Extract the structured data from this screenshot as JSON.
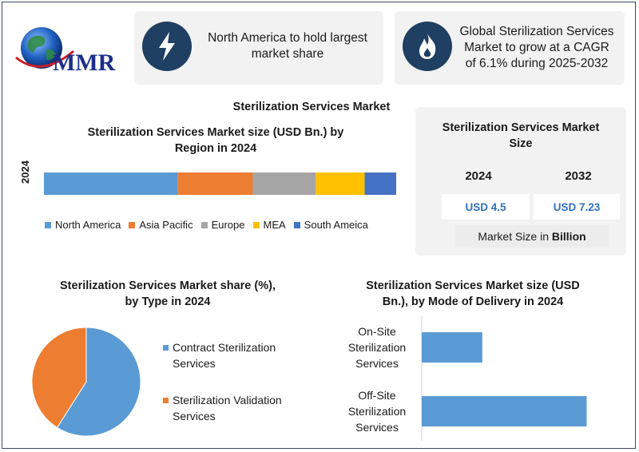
{
  "logo": {
    "text": "MMR"
  },
  "highlights": [
    {
      "icon": "lightning-bolt-icon",
      "text_lines": [
        "North America to hold largest",
        "market share"
      ]
    },
    {
      "icon": "flame-icon",
      "text_lines": [
        "Global Sterilization Services",
        "Market to grow at a CAGR",
        "of 6.1% during 2025-2032"
      ]
    }
  ],
  "main_title": "Sterilization Services Market",
  "market_size": {
    "title_lines": [
      "Sterilization Services Market",
      "Size"
    ],
    "year_1": "2024",
    "year_2": "2032",
    "value_1": "USD 4.5",
    "value_2": "USD 7.23",
    "footnote_prefix": "Market Size in ",
    "footnote_bold": "Billion"
  },
  "chart_data": [
    {
      "type": "bar",
      "orientation": "horizontal-stacked",
      "title": "Sterilization Services Market size (USD Bn.) by Region in 2024",
      "title_lines": [
        "Sterilization Services Market size (USD Bn.) by",
        "Region in 2024"
      ],
      "categories": [
        "2024"
      ],
      "series": [
        {
          "name": "North America",
          "values": [
            1.7
          ],
          "color": "#5b9bd5"
        },
        {
          "name": "Asia Pacific",
          "values": [
            0.95
          ],
          "color": "#ed7d31"
        },
        {
          "name": "Europe",
          "values": [
            0.8
          ],
          "color": "#a5a5a5"
        },
        {
          "name": "MEA",
          "values": [
            0.62
          ],
          "color": "#ffc000"
        },
        {
          "name": "South Ameica",
          "values": [
            0.4
          ],
          "color": "#4472c4"
        }
      ],
      "legend": "bottom",
      "grid": false
    },
    {
      "type": "pie",
      "title": "Sterilization Services Market share (%), by Type in 2024",
      "title_lines": [
        "Sterilization Services Market share (%),",
        "by Type in 2024"
      ],
      "series": [
        {
          "name": "Contract Sterilization Services",
          "name_lines": [
            "Contract Sterilization",
            "Services"
          ],
          "value": 59,
          "color": "#5b9bd5"
        },
        {
          "name": "Sterilization Validation Services",
          "name_lines": [
            "Sterilization Validation",
            "Services"
          ],
          "value": 41,
          "color": "#ed7d31"
        }
      ],
      "legend": "right"
    },
    {
      "type": "bar",
      "orientation": "horizontal",
      "title": "Sterilization Services Market size (USD Bn.), by Mode of Delivery in 2024",
      "title_lines": [
        "Sterilization Services Market size (USD",
        "Bn.), by Mode of Delivery in 2024"
      ],
      "categories": [
        "On-Site Sterilization Services",
        "Off-Site Sterilization Services"
      ],
      "category_lines": [
        [
          "On-Site",
          "Sterilization",
          "Services"
        ],
        [
          "Off-Site",
          "Sterilization",
          "Services"
        ]
      ],
      "values": [
        0.9,
        2.45
      ],
      "xlim": [
        0,
        2.8
      ],
      "color": "#5b9bd5",
      "grid": false
    }
  ]
}
